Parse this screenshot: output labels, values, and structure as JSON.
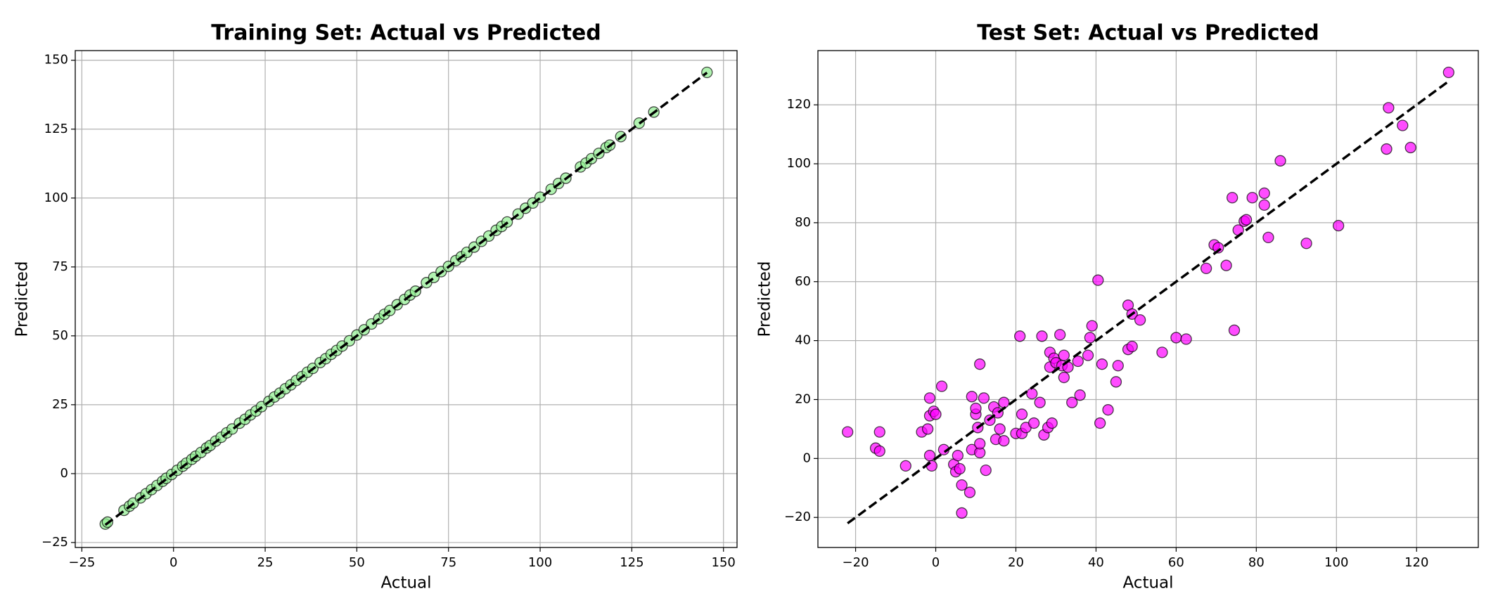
{
  "chart_data": [
    {
      "type": "scatter",
      "title": "Training Set: Actual vs Predicted",
      "x_label": "Actual",
      "y_label": "Predicted",
      "color": "#90ee90",
      "edge_color": "#000000",
      "opacity": 0.7,
      "grid": true,
      "xlim": [
        -26.8,
        153.7
      ],
      "ylim": [
        -26.8,
        153.5
      ],
      "xticks": [
        {
          "value": -25,
          "label": "−25"
        },
        0,
        25,
        50,
        75,
        100,
        125,
        150
      ],
      "yticks": [
        {
          "value": -25,
          "label": "−25"
        },
        0,
        25,
        50,
        75,
        100,
        125,
        150
      ],
      "x": [
        -18.6,
        -18,
        -13.5,
        -12,
        -11,
        -9,
        -7.5,
        -6,
        -4.5,
        -3,
        -2,
        -0.5,
        1,
        2.5,
        3.5,
        5,
        6,
        7.5,
        9,
        10,
        11.5,
        13,
        14.5,
        16,
        18,
        19.5,
        21,
        22.5,
        24,
        26,
        27.5,
        29,
        30.5,
        32,
        33.5,
        35,
        36.5,
        38,
        40,
        41.5,
        43,
        44.5,
        46,
        48,
        50,
        52,
        54,
        56,
        57.5,
        59,
        61,
        63,
        64.5,
        66,
        69,
        71,
        73,
        75,
        77,
        78.5,
        80,
        82,
        84,
        86,
        88,
        89.5,
        91,
        94,
        96,
        98,
        100,
        103,
        105,
        107,
        111,
        112.5,
        114,
        116,
        118,
        119,
        122,
        127,
        131,
        145.5
      ],
      "values": [
        -18.3,
        -17.6,
        -13.3,
        -11.8,
        -10.7,
        -8.8,
        -7.3,
        -5.8,
        -4.3,
        -2.8,
        -1.7,
        -0.3,
        1.2,
        2.7,
        3.8,
        5.2,
        6.3,
        7.7,
        9.3,
        10.2,
        11.8,
        13.2,
        14.8,
        16.2,
        18.3,
        19.7,
        21.3,
        22.7,
        24.3,
        26.2,
        27.8,
        29.2,
        30.8,
        32.2,
        33.8,
        35.2,
        36.8,
        38.2,
        40.3,
        41.7,
        43.3,
        44.7,
        46.3,
        48.2,
        50.3,
        52.2,
        54.3,
        56.2,
        57.8,
        59.2,
        61.3,
        63.2,
        64.8,
        66.2,
        69.3,
        71.2,
        73.3,
        75.2,
        77.3,
        78.7,
        80.3,
        82.2,
        84.3,
        86.2,
        88.3,
        89.7,
        91.3,
        94.2,
        96.3,
        98.2,
        100.3,
        103.2,
        105.3,
        107.2,
        111.3,
        112.7,
        114.3,
        116.2,
        118.3,
        119.2,
        122.3,
        127.2,
        131.2,
        145.6
      ],
      "reference_line": {
        "x": [
          -18.6,
          145.5
        ],
        "y": [
          -18.6,
          145.5
        ]
      }
    },
    {
      "type": "scatter",
      "title": "Test Set: Actual vs Predicted",
      "x_label": "Actual",
      "y_label": "Predicted",
      "color": "#ff00ff",
      "edge_color": "#000000",
      "opacity": 0.7,
      "grid": true,
      "xlim": [
        -29.4,
        135.4
      ],
      "ylim": [
        -30.2,
        138.4
      ],
      "xticks": [
        {
          "value": -20,
          "label": "−20"
        },
        0,
        20,
        40,
        60,
        80,
        100,
        120
      ],
      "yticks": [
        {
          "value": -20,
          "label": "−20"
        },
        0,
        20,
        40,
        60,
        80,
        100,
        120
      ],
      "x": [
        -22,
        -15,
        -14,
        -14,
        -7.5,
        -3.5,
        -2,
        -1.5,
        -1.5,
        -1.5,
        -1,
        -0.5,
        0,
        1.5,
        2,
        4.5,
        5,
        5.5,
        6,
        6.5,
        6.5,
        8.5,
        9,
        9,
        10,
        10,
        10.5,
        11,
        11,
        11,
        12,
        12.5,
        13.5,
        14.5,
        15,
        15.5,
        16,
        17,
        17,
        20,
        21,
        21.5,
        21.5,
        22.5,
        24,
        24.5,
        26,
        26.5,
        27,
        28,
        28.5,
        28.5,
        29,
        29.5,
        30,
        31,
        31.5,
        32,
        32,
        33,
        34,
        35.5,
        36,
        38,
        38.5,
        39,
        40.5,
        41,
        41.5,
        43,
        45,
        45.5,
        48,
        48,
        49,
        49,
        51,
        56.5,
        60,
        62.5,
        67.5,
        69.5,
        70.5,
        72.5,
        74,
        74.5,
        75.5,
        77,
        77.5,
        79,
        82,
        82,
        83,
        86,
        92.5,
        100.5,
        112.5,
        113,
        116.5,
        118.5,
        128
      ],
      "values": [
        9,
        3.5,
        9,
        2.5,
        -2.5,
        9,
        10,
        14.5,
        20.5,
        1,
        -2.5,
        16,
        15,
        24.5,
        3,
        -2,
        -4.5,
        1,
        -3.5,
        -9,
        -18.5,
        -11.5,
        21,
        3,
        15,
        17,
        10.5,
        2,
        5,
        32,
        20.5,
        -4,
        13,
        17.5,
        6.5,
        15.5,
        10,
        19,
        6,
        8.5,
        41.5,
        8.5,
        15,
        10.5,
        22,
        12,
        19,
        41.5,
        8,
        10.5,
        36,
        31,
        12,
        34,
        32.5,
        42,
        31.5,
        35,
        27.5,
        31,
        19,
        33,
        21.5,
        35,
        41,
        45,
        60.5,
        12,
        32,
        16.5,
        26,
        31.5,
        37,
        52,
        49,
        38,
        47,
        36,
        41,
        40.5,
        64.5,
        72.5,
        71.5,
        65.5,
        88.5,
        43.5,
        77.5,
        80.5,
        81,
        88.5,
        86,
        90,
        75,
        101,
        73,
        79,
        105,
        119,
        113,
        105.5,
        131
      ],
      "reference_line": {
        "x": [
          -22,
          128
        ],
        "y": [
          -22,
          128
        ]
      }
    }
  ]
}
